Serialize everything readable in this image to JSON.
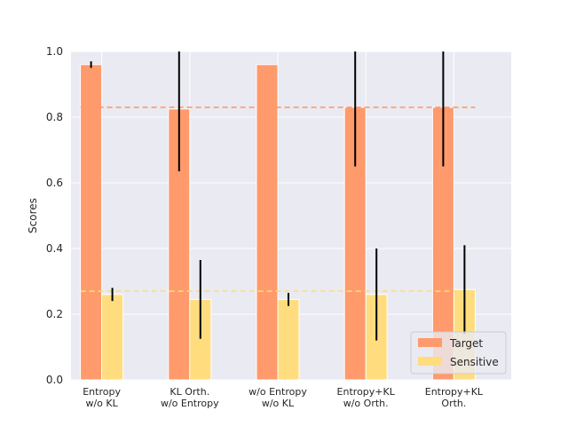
{
  "chart_data": {
    "type": "bar",
    "title": "",
    "xlabel": "",
    "ylabel": "Scores",
    "ylim": [
      0,
      1.0
    ],
    "yticks": [
      "0.0",
      "0.2",
      "0.4",
      "0.6",
      "0.8",
      "1.0"
    ],
    "categories": [
      [
        "Entropy",
        "w/o KL"
      ],
      [
        "KL Orth.",
        "w/o Entropy"
      ],
      [
        "w/o Entropy",
        "w/o KL"
      ],
      [
        "Entropy+KL",
        "w/o Orth."
      ],
      [
        "Entropy+KL",
        "Orth."
      ]
    ],
    "series": [
      {
        "name": "Target",
        "color": "#FF9A6C",
        "values": [
          0.96,
          0.825,
          0.96,
          0.83,
          0.83
        ],
        "errors": [
          0.01,
          0.19,
          0.0,
          0.18,
          0.18
        ],
        "reference_line": 0.83
      },
      {
        "name": "Sensitive",
        "color": "#FFDD7F",
        "values": [
          0.26,
          0.245,
          0.245,
          0.26,
          0.275
        ],
        "errors": [
          0.02,
          0.12,
          0.02,
          0.14,
          0.135
        ],
        "reference_line": 0.27
      }
    ],
    "grid": true,
    "legend_position": "lower-right",
    "background": "#EAEAF2"
  }
}
